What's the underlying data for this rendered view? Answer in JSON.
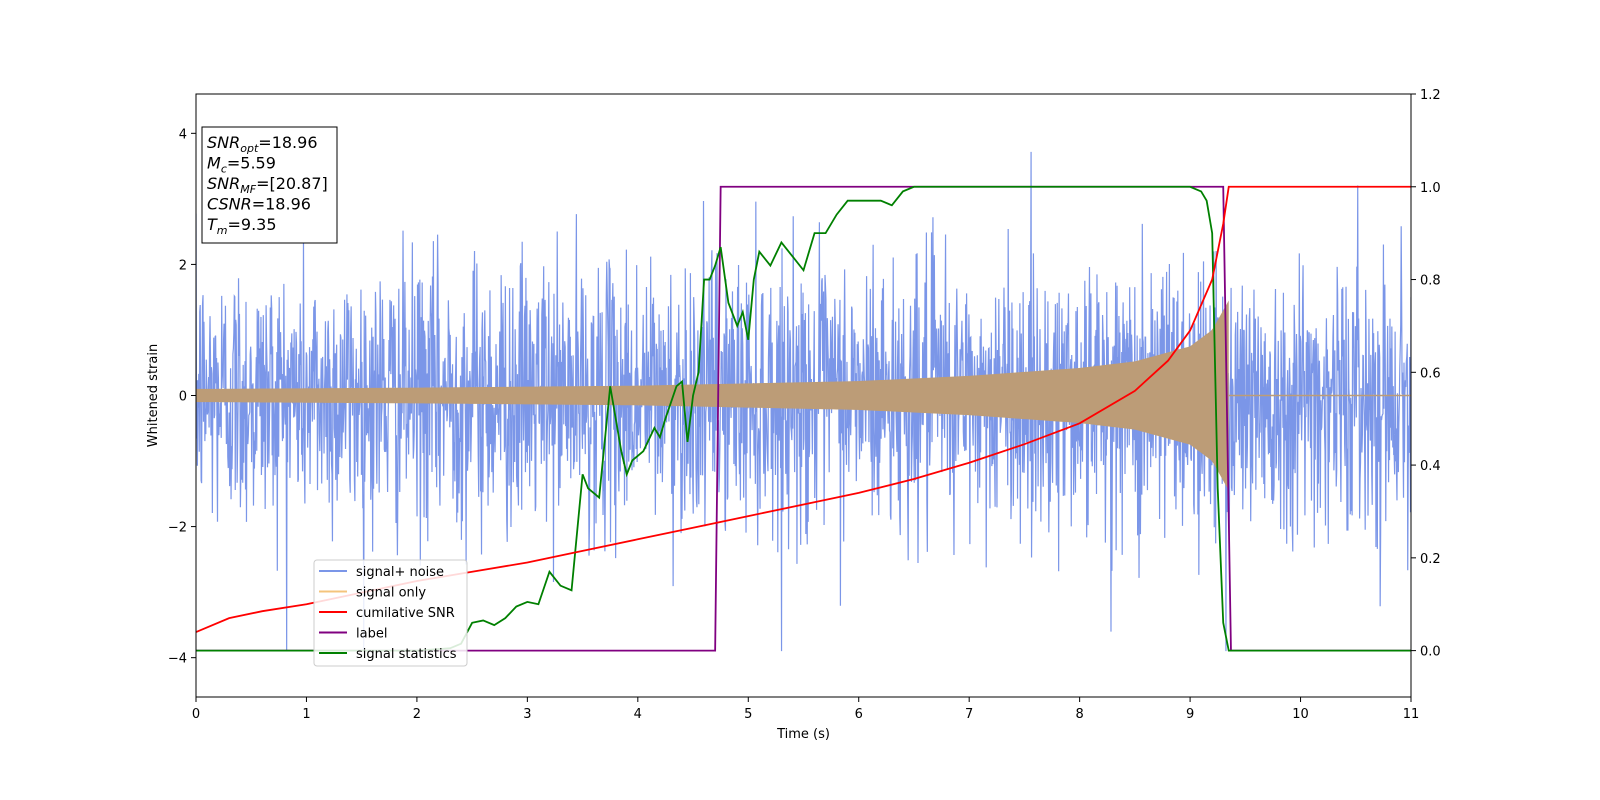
{
  "chart_data": {
    "type": "line",
    "xlabel": "Time (s)",
    "ylabel": "Whitened strain",
    "xlim": [
      0,
      11
    ],
    "ylim_left": [
      -4.6,
      4.6
    ],
    "ylim_right": [
      -0.1,
      1.2
    ],
    "x_ticks": [
      "0",
      "1",
      "2",
      "3",
      "4",
      "5",
      "6",
      "7",
      "8",
      "9",
      "10",
      "11"
    ],
    "y_left_ticks": [
      "−4",
      "−2",
      "0",
      "2",
      "4"
    ],
    "y_right_ticks": [
      "0.0",
      "0.2",
      "0.4",
      "0.6",
      "0.8",
      "1.0",
      "1.2"
    ],
    "grid": false,
    "legend_position": "lower-left",
    "annotation": {
      "lines": [
        {
          "base": "SNR",
          "sub": "opt",
          "value": "=18.96"
        },
        {
          "base": "M",
          "sub": "c",
          "value": "=5.59"
        },
        {
          "base": "SNR",
          "sub": "MF",
          "value": "=[20.87]"
        },
        {
          "base": "CSNR",
          "sub": "",
          "value": "=18.96"
        },
        {
          "base": "T",
          "sub": "m",
          "value": "=9.35"
        }
      ]
    },
    "series": [
      {
        "name": "signal+ noise",
        "axis": "left",
        "color": "#7b96e8",
        "style": "noise",
        "noise_sigma": 1.0
      },
      {
        "name": "signal only",
        "axis": "left",
        "color": "#f4c47c",
        "style": "chirp",
        "envelope": [
          [
            0,
            0.1
          ],
          [
            2,
            0.12
          ],
          [
            4,
            0.15
          ],
          [
            6,
            0.22
          ],
          [
            7,
            0.3
          ],
          [
            8,
            0.42
          ],
          [
            8.5,
            0.52
          ],
          [
            9,
            0.75
          ],
          [
            9.2,
            1.0
          ],
          [
            9.35,
            1.45
          ]
        ],
        "end": 9.35
      },
      {
        "name": "cumilative SNR",
        "axis": "right",
        "color": "#ff0000",
        "x": [
          0,
          0.3,
          0.6,
          1,
          1.5,
          2,
          2.5,
          3,
          3.5,
          4,
          4.5,
          5,
          5.5,
          6,
          6.5,
          7,
          7.5,
          8,
          8.5,
          8.8,
          9.0,
          9.2,
          9.3,
          9.35,
          11
        ],
        "y": [
          0.04,
          0.07,
          0.085,
          0.1,
          0.125,
          0.15,
          0.17,
          0.19,
          0.215,
          0.24,
          0.265,
          0.29,
          0.315,
          0.34,
          0.37,
          0.405,
          0.445,
          0.49,
          0.56,
          0.625,
          0.69,
          0.8,
          0.92,
          1.0,
          1.0
        ]
      },
      {
        "name": "label",
        "axis": "right",
        "color": "#800080",
        "x": [
          0,
          4.7,
          4.75,
          9.3,
          9.37,
          11
        ],
        "y": [
          0,
          0,
          1,
          1,
          0,
          0
        ]
      },
      {
        "name": "signal statistics",
        "axis": "right",
        "color": "#008000",
        "x": [
          0,
          0.5,
          1,
          1.5,
          2,
          2.3,
          2.4,
          2.5,
          2.6,
          2.7,
          2.8,
          2.9,
          3.0,
          3.1,
          3.2,
          3.3,
          3.4,
          3.5,
          3.55,
          3.65,
          3.75,
          3.85,
          3.9,
          3.95,
          4.05,
          4.15,
          4.2,
          4.25,
          4.35,
          4.4,
          4.45,
          4.5,
          4.55,
          4.6,
          4.65,
          4.7,
          4.75,
          4.82,
          4.9,
          4.95,
          5.0,
          5.05,
          5.1,
          5.2,
          5.3,
          5.4,
          5.5,
          5.6,
          5.7,
          5.8,
          5.9,
          6.0,
          6.1,
          6.2,
          6.3,
          6.4,
          6.5,
          6.6,
          7,
          7.5,
          8,
          8.5,
          9,
          9.1,
          9.15,
          9.2,
          9.25,
          9.3,
          9.35,
          9.4,
          11
        ],
        "y": [
          0,
          0,
          0,
          0,
          0,
          0.005,
          0.015,
          0.06,
          0.065,
          0.055,
          0.07,
          0.095,
          0.105,
          0.1,
          0.17,
          0.14,
          0.13,
          0.38,
          0.35,
          0.33,
          0.57,
          0.43,
          0.38,
          0.41,
          0.43,
          0.48,
          0.46,
          0.5,
          0.57,
          0.58,
          0.45,
          0.55,
          0.6,
          0.8,
          0.8,
          0.83,
          0.87,
          0.75,
          0.7,
          0.73,
          0.67,
          0.8,
          0.86,
          0.83,
          0.88,
          0.85,
          0.82,
          0.9,
          0.9,
          0.94,
          0.97,
          0.97,
          0.97,
          0.97,
          0.96,
          0.99,
          1.0,
          1.0,
          1.0,
          1.0,
          1.0,
          1.0,
          1.0,
          0.99,
          0.97,
          0.9,
          0.35,
          0.06,
          0,
          0,
          0
        ]
      }
    ]
  }
}
